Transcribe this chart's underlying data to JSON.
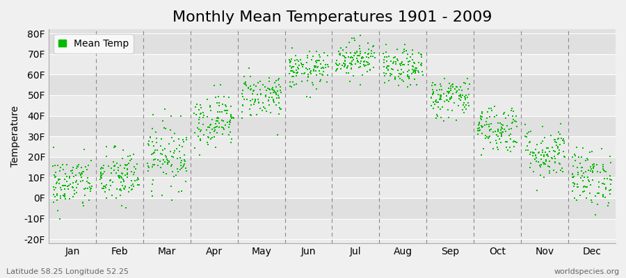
{
  "title": "Monthly Mean Temperatures 1901 - 2009",
  "ylabel": "Temperature",
  "xlabel_labels": [
    "Jan",
    "Feb",
    "Mar",
    "Apr",
    "May",
    "Jun",
    "Jul",
    "Aug",
    "Sep",
    "Oct",
    "Nov",
    "Dec"
  ],
  "ytick_labels": [
    "-20F",
    "-10F",
    "0F",
    "10F",
    "20F",
    "30F",
    "40F",
    "50F",
    "60F",
    "70F",
    "80F"
  ],
  "ytick_values": [
    -20,
    -10,
    0,
    10,
    20,
    30,
    40,
    50,
    60,
    70,
    80
  ],
  "ylim": [
    -22,
    82
  ],
  "dot_color": "#00bb00",
  "dot_size": 4,
  "background_color": "#f0f0f0",
  "plot_bg_color_light": "#ebebeb",
  "plot_bg_color_dark": "#e0e0e0",
  "grid_line_color": "#ffffff",
  "dashed_color": "#888888",
  "legend_label": "Mean Temp",
  "footer_left": "Latitude 58.25 Longitude 52.25",
  "footer_right": "worldspecies.org",
  "title_fontsize": 16,
  "label_fontsize": 10,
  "monthly_mean_F": [
    7.0,
    10.0,
    21.0,
    38.0,
    50.0,
    62.0,
    68.0,
    63.0,
    49.0,
    34.0,
    22.0,
    10.0
  ],
  "monthly_std_F": [
    6.5,
    7.0,
    8.0,
    6.5,
    5.5,
    4.5,
    4.5,
    4.5,
    5.0,
    6.0,
    6.5,
    7.0
  ],
  "n_years": 109,
  "seed": 42
}
